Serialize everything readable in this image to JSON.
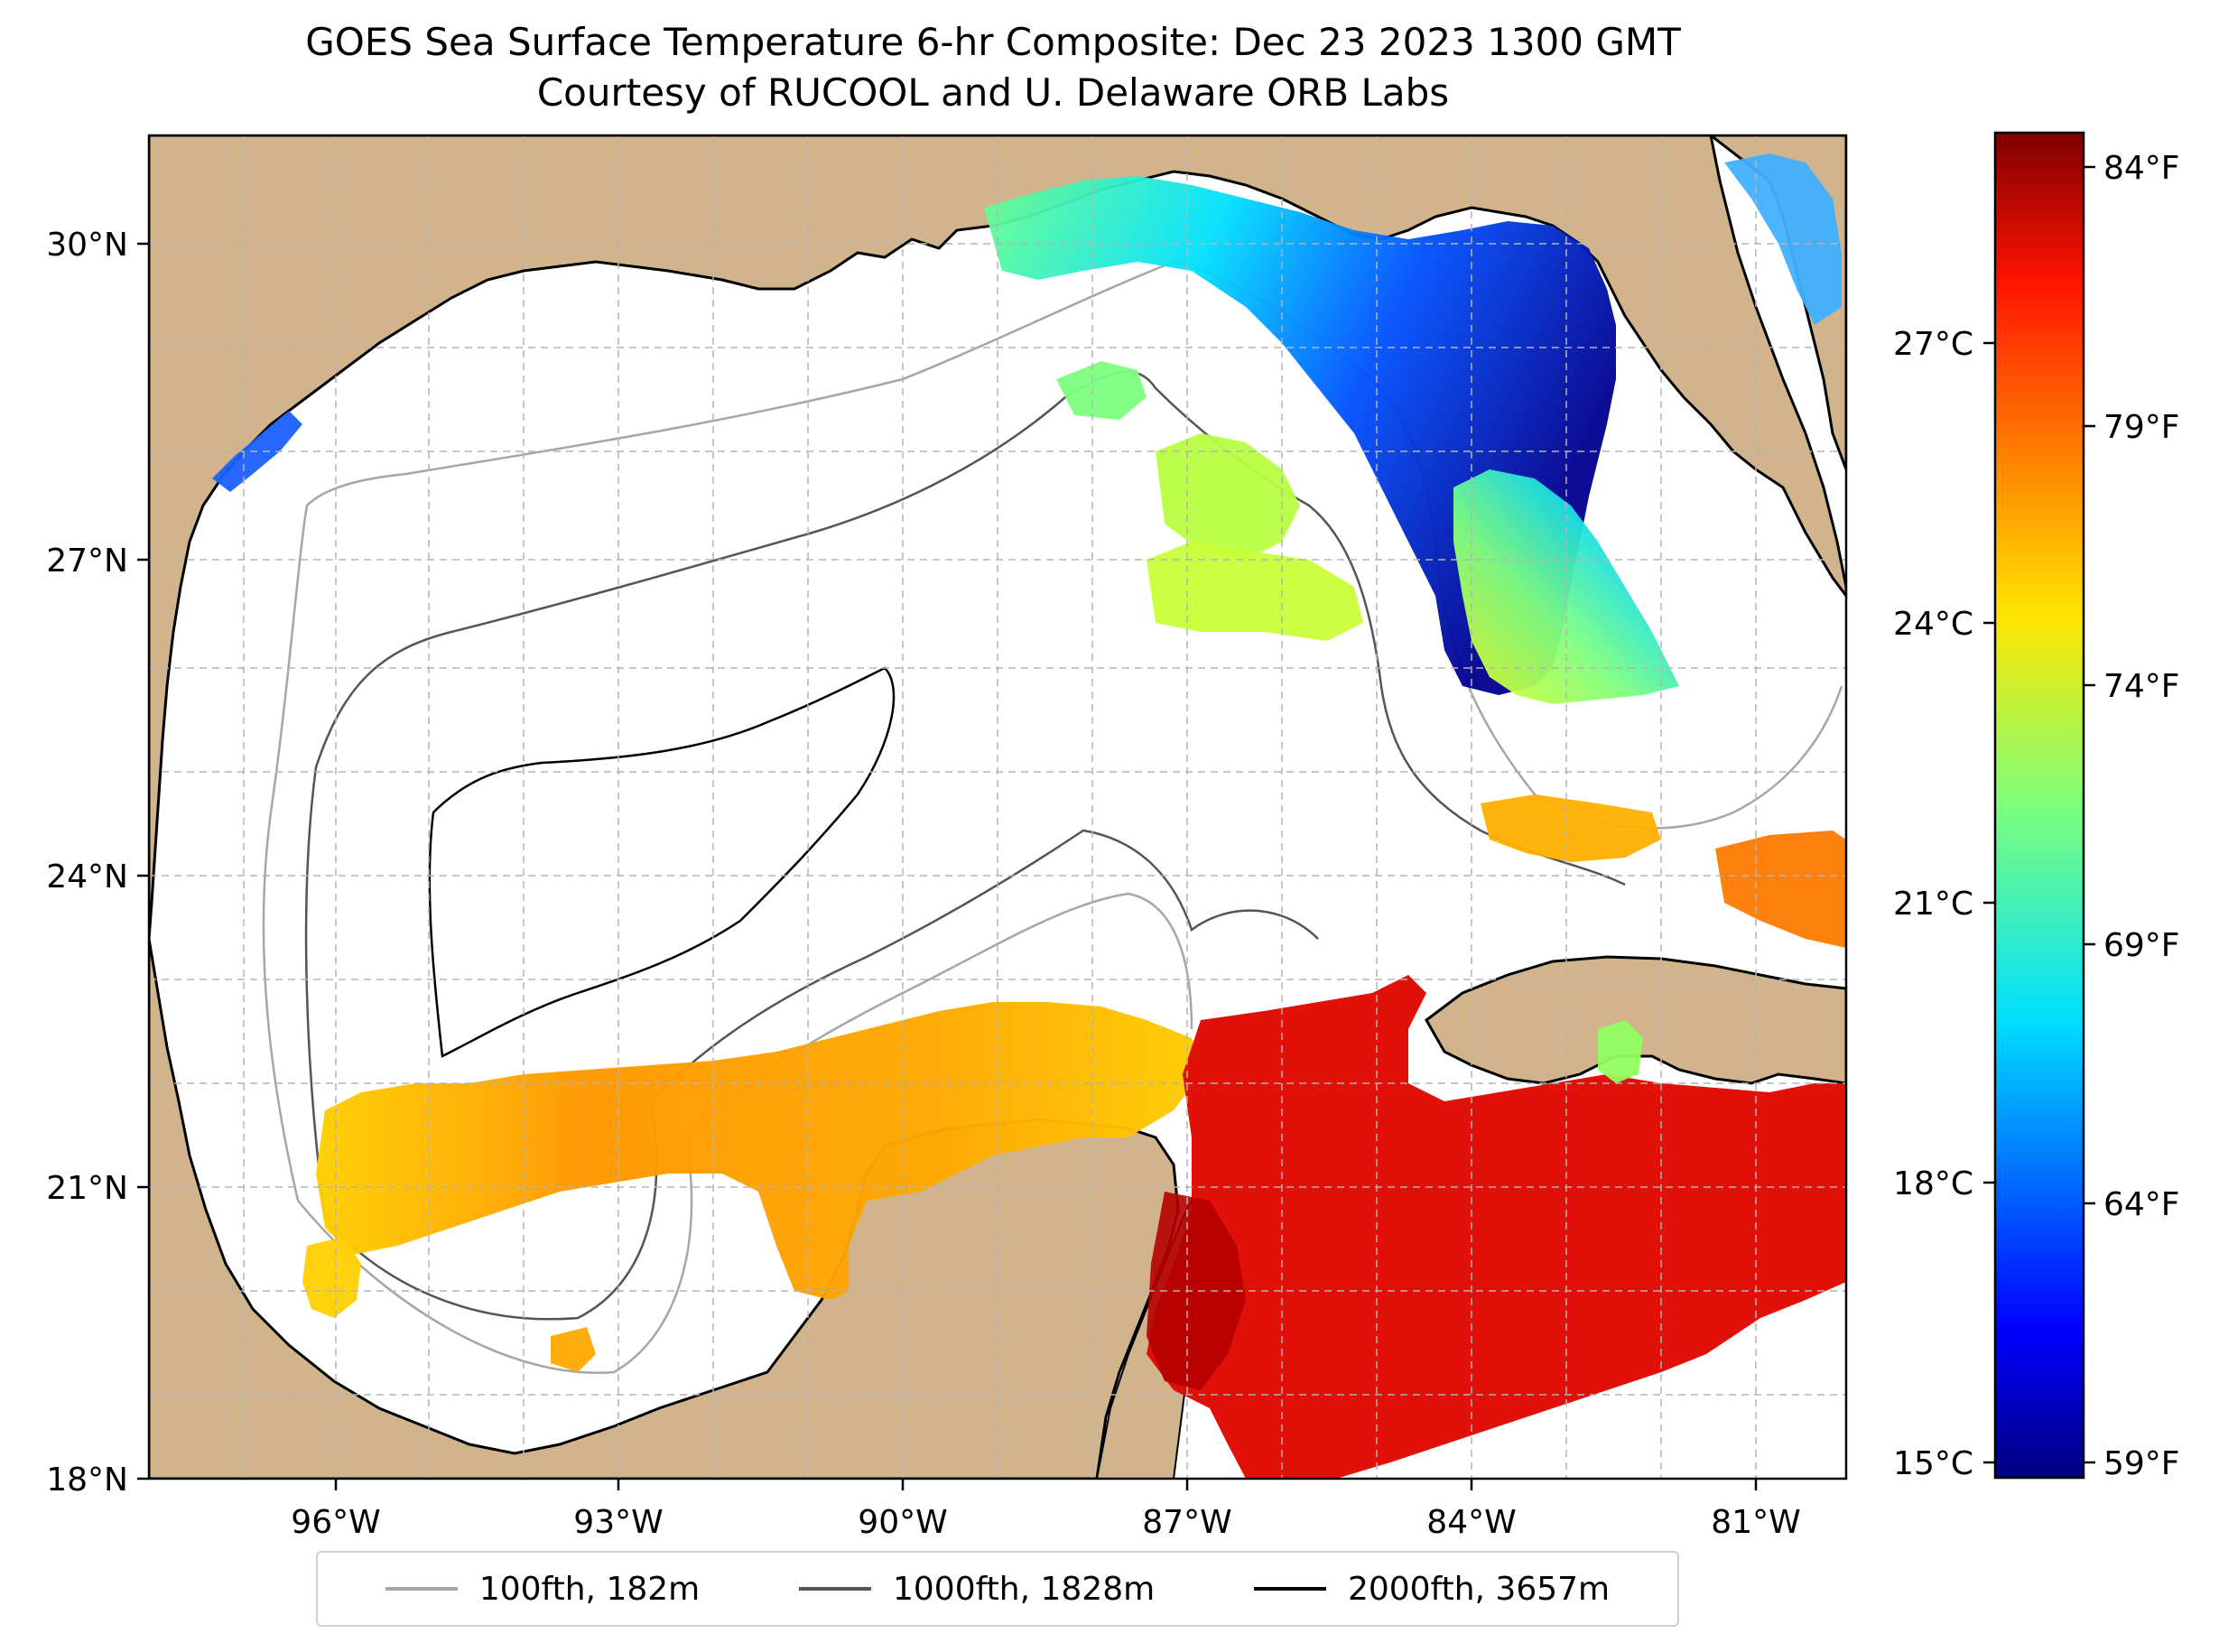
{
  "title": {
    "line1": "GOES Sea Surface Temperature 6-hr Composite: Dec 23 2023 1300 GMT",
    "line2": "Courtesy of RUCOOL and U. Delaware ORB Labs"
  },
  "map": {
    "land_color": "#d2b48c",
    "water_color": "#ffffff",
    "lat_ticks": [
      "30°N",
      "27°N",
      "24°N",
      "21°N",
      "18°N"
    ],
    "lon_ticks": [
      "96°W",
      "93°W",
      "90°W",
      "87°W",
      "84°W",
      "81°W"
    ],
    "lon_range": [
      -98,
      -80
    ],
    "lat_range": [
      18,
      31
    ]
  },
  "colorbar": {
    "celsius_ticks": [
      "27°C",
      "24°C",
      "21°C",
      "18°C",
      "15°C"
    ],
    "fahrenheit_ticks": [
      "84°F",
      "79°F",
      "74°F",
      "69°F",
      "64°F",
      "59°F"
    ],
    "colormap": "jet",
    "range_c": [
      15,
      29
    ]
  },
  "legend": {
    "items": [
      {
        "label": "100fth, 182m",
        "color": "#a6a6a6"
      },
      {
        "label": "1000fth, 1828m",
        "color": "#555555"
      },
      {
        "label": "2000fth, 3657m",
        "color": "#000000"
      }
    ]
  }
}
